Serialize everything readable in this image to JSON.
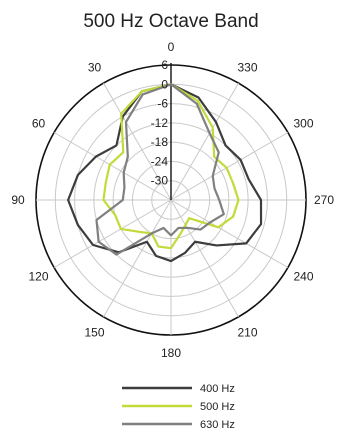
{
  "chart_data": {
    "type": "polar-line",
    "title": "500 Hz Octave Band",
    "angle_ticks": [
      "0",
      "330",
      "300",
      "270",
      "240",
      "210",
      "180",
      "150",
      "120",
      "90",
      "60",
      "30"
    ],
    "angle_tick_values": [
      0,
      330,
      300,
      270,
      240,
      210,
      180,
      150,
      120,
      90,
      60,
      30
    ],
    "angle_direction": "counterclockwise from top",
    "radial_ticks": [
      "6",
      "0",
      "-6",
      "-12",
      "-18",
      "-24",
      "-30"
    ],
    "rlim": [
      -36,
      6
    ],
    "grid": true,
    "legend_position": "bottom",
    "angles_deg": [
      0,
      15,
      30,
      45,
      60,
      75,
      90,
      105,
      120,
      135,
      150,
      165,
      180,
      195,
      210,
      225,
      240,
      255,
      270,
      285,
      300,
      315,
      330,
      345
    ],
    "series": [
      {
        "name": "400 Hz",
        "color": "#3d3d3d",
        "values": [
          0,
          -1,
          -6,
          -12,
          -9,
          -6,
          -4,
          -6,
          -8,
          -13,
          -21,
          -18,
          -17,
          -19,
          -21,
          -16,
          -9,
          -7,
          -8,
          -11,
          -11,
          -12,
          -8,
          -3
        ]
      },
      {
        "name": "500 Hz",
        "color": "#c4d93a",
        "values": [
          0,
          -1,
          -5,
          -15,
          -14,
          -15,
          -15,
          -18,
          -18,
          -22,
          -24,
          -21,
          -21,
          -25,
          -27,
          -28,
          -19,
          -16,
          -15,
          -16,
          -16,
          -17,
          -10,
          -4
        ]
      },
      {
        "name": "630 Hz",
        "color": "#808080",
        "values": [
          0,
          -2,
          -8,
          -17,
          -19,
          -21,
          -21,
          -12,
          -10,
          -12,
          -24,
          -27,
          -25,
          -27,
          -26,
          -23,
          -22,
          -19,
          -21,
          -22,
          -21,
          -15,
          -12,
          -5
        ]
      }
    ]
  }
}
